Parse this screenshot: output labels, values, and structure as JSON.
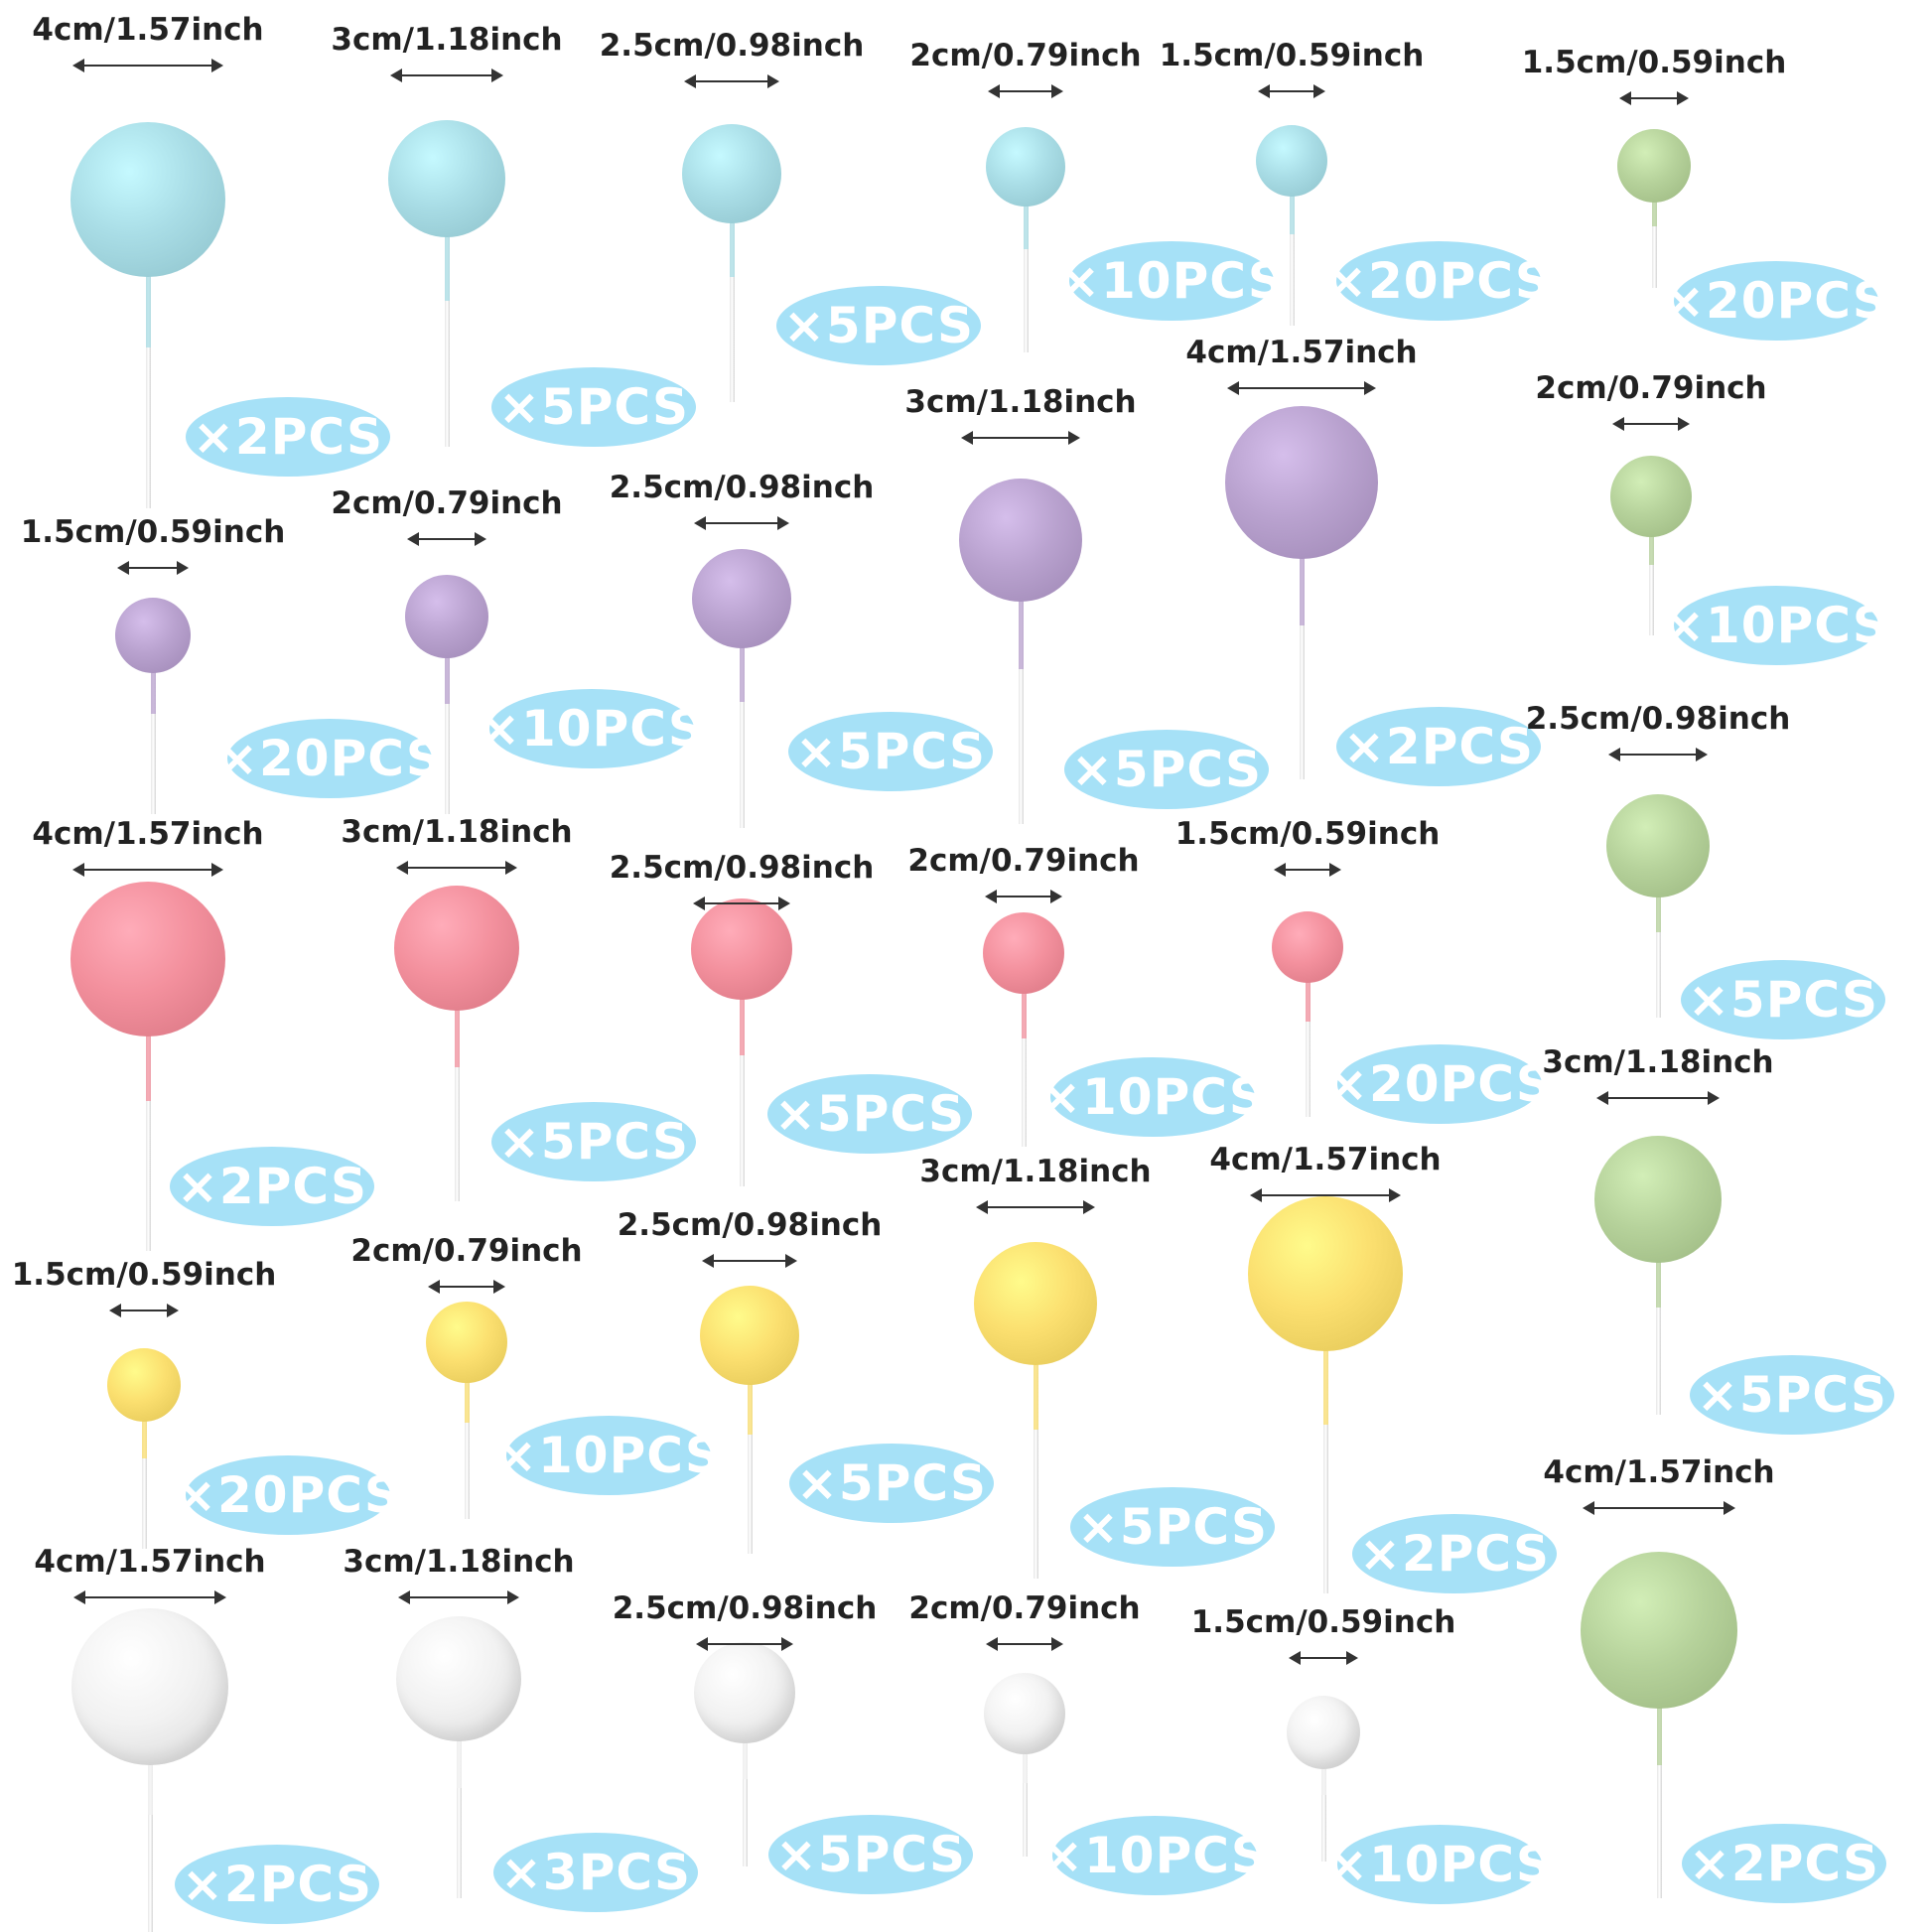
{
  "colors": {
    "blue": "#a9dde6",
    "purple": "#b9a2cf",
    "pink": "#f3909d",
    "yellow": "#fbdf6f",
    "white": "#f2f2f2",
    "green": "#b6d29b",
    "badge": "#a6e1f7",
    "badge_text": "#ffffff",
    "label_text": "#222222"
  },
  "badge_icon": "multiply-sign",
  "picks": [
    {
      "color": "blue",
      "size": "4cm/1.57inch",
      "qty": "×2PCS"
    },
    {
      "color": "blue",
      "size": "3cm/1.18inch",
      "qty": "×5PCS"
    },
    {
      "color": "blue",
      "size": "2.5cm/0.98inch",
      "qty": "×5PCS"
    },
    {
      "color": "blue",
      "size": "2cm/0.79inch",
      "qty": "×10PCS"
    },
    {
      "color": "blue",
      "size": "1.5cm/0.59inch",
      "qty": "×20PCS"
    },
    {
      "color": "purple",
      "size": "1.5cm/0.59inch",
      "qty": "×20PCS"
    },
    {
      "color": "purple",
      "size": "2cm/0.79inch",
      "qty": "×10PCS"
    },
    {
      "color": "purple",
      "size": "2.5cm/0.98inch",
      "qty": "×5PCS"
    },
    {
      "color": "purple",
      "size": "3cm/1.18inch",
      "qty": "×5PCS"
    },
    {
      "color": "purple",
      "size": "4cm/1.57inch",
      "qty": "×2PCS"
    },
    {
      "color": "pink",
      "size": "4cm/1.57inch",
      "qty": "×2PCS"
    },
    {
      "color": "pink",
      "size": "3cm/1.18inch",
      "qty": "×5PCS"
    },
    {
      "color": "pink",
      "size": "2.5cm/0.98inch",
      "qty": "×5PCS"
    },
    {
      "color": "pink",
      "size": "2cm/0.79inch",
      "qty": "×10PCS"
    },
    {
      "color": "pink",
      "size": "1.5cm/0.59inch",
      "qty": "×20PCS"
    },
    {
      "color": "yellow",
      "size": "1.5cm/0.59inch",
      "qty": "×20PCS"
    },
    {
      "color": "yellow",
      "size": "2cm/0.79inch",
      "qty": "×10PCS"
    },
    {
      "color": "yellow",
      "size": "2.5cm/0.98inch",
      "qty": "×5PCS"
    },
    {
      "color": "yellow",
      "size": "3cm/1.18inch",
      "qty": "×5PCS"
    },
    {
      "color": "yellow",
      "size": "4cm/1.57inch",
      "qty": "×2PCS"
    },
    {
      "color": "white",
      "size": "4cm/1.57inch",
      "qty": "×2PCS"
    },
    {
      "color": "white",
      "size": "3cm/1.18inch",
      "qty": "×3PCS"
    },
    {
      "color": "white",
      "size": "2.5cm/0.98inch",
      "qty": "×5PCS"
    },
    {
      "color": "white",
      "size": "2cm/0.79inch",
      "qty": "×10PCS"
    },
    {
      "color": "white",
      "size": "1.5cm/0.59inch",
      "qty": "×10PCS"
    },
    {
      "color": "green",
      "size": "1.5cm/0.59inch",
      "qty": "×20PCS"
    },
    {
      "color": "green",
      "size": "2cm/0.79inch",
      "qty": "×10PCS"
    },
    {
      "color": "green",
      "size": "2.5cm/0.98inch",
      "qty": "×5PCS"
    },
    {
      "color": "green",
      "size": "3cm/1.18inch",
      "qty": "×5PCS"
    },
    {
      "color": "green",
      "size": "4cm/1.57inch",
      "qty": "×2PCS"
    }
  ]
}
